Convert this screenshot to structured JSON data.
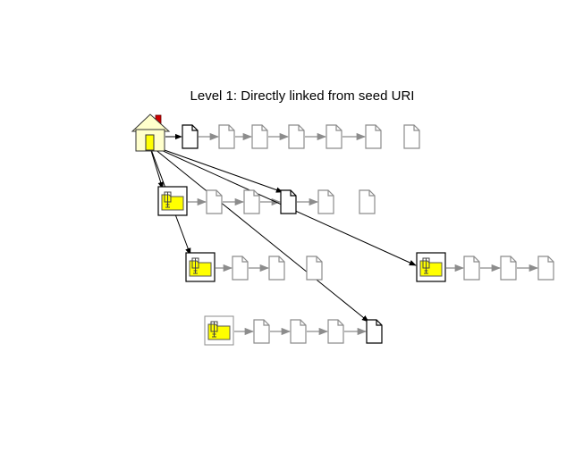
{
  "title": "Level 1: Directly linked from seed URI",
  "colors": {
    "black": "#000000",
    "grey": "#8c8c8c",
    "folder_yellow": "#ffff00",
    "house_fill": "#ffffcc",
    "chimney_red": "#cc0000"
  },
  "nodes": [
    {
      "id": "seed",
      "icon": "house-icon"
    },
    {
      "id": "r1-doc1",
      "icon": "document-icon",
      "state": "linked"
    },
    {
      "id": "r1-doc2",
      "icon": "document-icon",
      "state": "unlinked"
    },
    {
      "id": "r1-doc3",
      "icon": "document-icon",
      "state": "unlinked"
    },
    {
      "id": "r1-doc4",
      "icon": "document-icon",
      "state": "unlinked"
    },
    {
      "id": "r1-doc5",
      "icon": "document-icon",
      "state": "unlinked"
    },
    {
      "id": "r1-doc6",
      "icon": "document-icon",
      "state": "unlinked"
    },
    {
      "id": "r1-doc7",
      "icon": "document-icon",
      "state": "unlinked"
    },
    {
      "id": "r2-zip",
      "icon": "zip-folder-icon",
      "state": "linked"
    },
    {
      "id": "r2-doc1",
      "icon": "document-icon",
      "state": "unlinked"
    },
    {
      "id": "r2-doc2",
      "icon": "document-icon",
      "state": "unlinked"
    },
    {
      "id": "r2-doc3",
      "icon": "document-icon",
      "state": "linked"
    },
    {
      "id": "r2-doc4",
      "icon": "document-icon",
      "state": "unlinked"
    },
    {
      "id": "r2-doc5",
      "icon": "document-icon",
      "state": "unlinked"
    },
    {
      "id": "r3-zip",
      "icon": "zip-folder-icon",
      "state": "linked"
    },
    {
      "id": "r3-doc1",
      "icon": "document-icon",
      "state": "unlinked"
    },
    {
      "id": "r3-doc2",
      "icon": "document-icon",
      "state": "unlinked"
    },
    {
      "id": "r3-doc3",
      "icon": "document-icon",
      "state": "unlinked"
    },
    {
      "id": "r4-zip",
      "icon": "zip-folder-icon",
      "state": "unlinked"
    },
    {
      "id": "r4-doc1",
      "icon": "document-icon",
      "state": "unlinked"
    },
    {
      "id": "r4-doc2",
      "icon": "document-icon",
      "state": "unlinked"
    },
    {
      "id": "r4-doc3",
      "icon": "document-icon",
      "state": "unlinked"
    },
    {
      "id": "r4-doc4",
      "icon": "document-icon",
      "state": "linked"
    },
    {
      "id": "r5-zip",
      "icon": "zip-folder-icon",
      "state": "linked"
    },
    {
      "id": "r5-doc1",
      "icon": "document-icon",
      "state": "unlinked"
    },
    {
      "id": "r5-doc2",
      "icon": "document-icon",
      "state": "unlinked"
    },
    {
      "id": "r5-doc3",
      "icon": "document-icon",
      "state": "unlinked"
    }
  ],
  "links": [
    {
      "from": "seed",
      "to": "r1-doc1"
    },
    {
      "from": "seed",
      "to": "r2-zip"
    },
    {
      "from": "seed",
      "to": "r3-zip"
    },
    {
      "from": "seed",
      "to": "r2-doc3"
    },
    {
      "from": "seed",
      "to": "r4-doc4"
    },
    {
      "from": "seed",
      "to": "r5-zip"
    }
  ],
  "sequences": [
    [
      "r1-doc1",
      "r1-doc2",
      "r1-doc3",
      "r1-doc4",
      "r1-doc5",
      "r1-doc6"
    ],
    [
      "r2-zip",
      "r2-doc1",
      "r2-doc2",
      "r2-doc3",
      "r2-doc4"
    ],
    [
      "r3-zip",
      "r3-doc1",
      "r3-doc2"
    ],
    [
      "r4-zip",
      "r4-doc1",
      "r4-doc2",
      "r4-doc3",
      "r4-doc4"
    ],
    [
      "r5-zip",
      "r5-doc1",
      "r5-doc2",
      "r5-doc3"
    ]
  ]
}
